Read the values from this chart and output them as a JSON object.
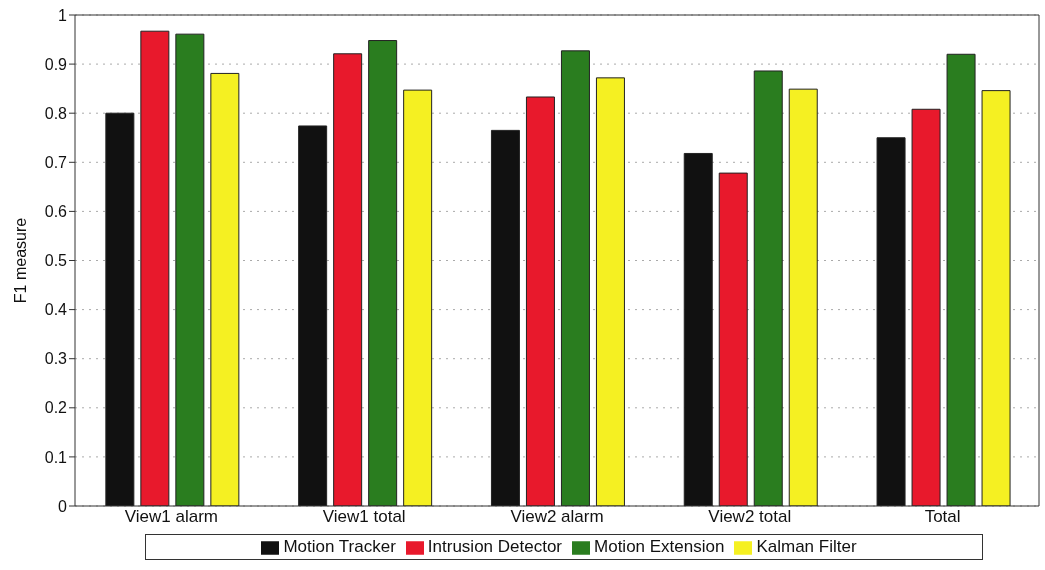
{
  "chart_data": {
    "type": "bar",
    "ylabel": "F1 measure",
    "categories": [
      "View1 alarm",
      "View1 total",
      "View2 alarm",
      "View2 total",
      "Total"
    ],
    "series": [
      {
        "name": "Motion Tracker",
        "color": "#111111",
        "values": [
          0.8,
          0.774,
          0.765,
          0.718,
          0.75
        ]
      },
      {
        "name": "Intrusion Detector",
        "color": "#e8192c",
        "values": [
          0.967,
          0.921,
          0.833,
          0.678,
          0.808
        ]
      },
      {
        "name": "Motion Extension",
        "color": "#2a7d1f",
        "values": [
          0.961,
          0.948,
          0.927,
          0.886,
          0.92
        ]
      },
      {
        "name": "Kalman Filter",
        "color": "#f5f022",
        "values": [
          0.881,
          0.847,
          0.872,
          0.849,
          0.846
        ]
      }
    ],
    "ylim": [
      0,
      1
    ],
    "yticks": [
      0,
      0.1,
      0.2,
      0.3,
      0.4,
      0.5,
      0.6,
      0.7,
      0.8,
      0.9,
      1
    ],
    "grid": "y",
    "legend": "bottom"
  }
}
